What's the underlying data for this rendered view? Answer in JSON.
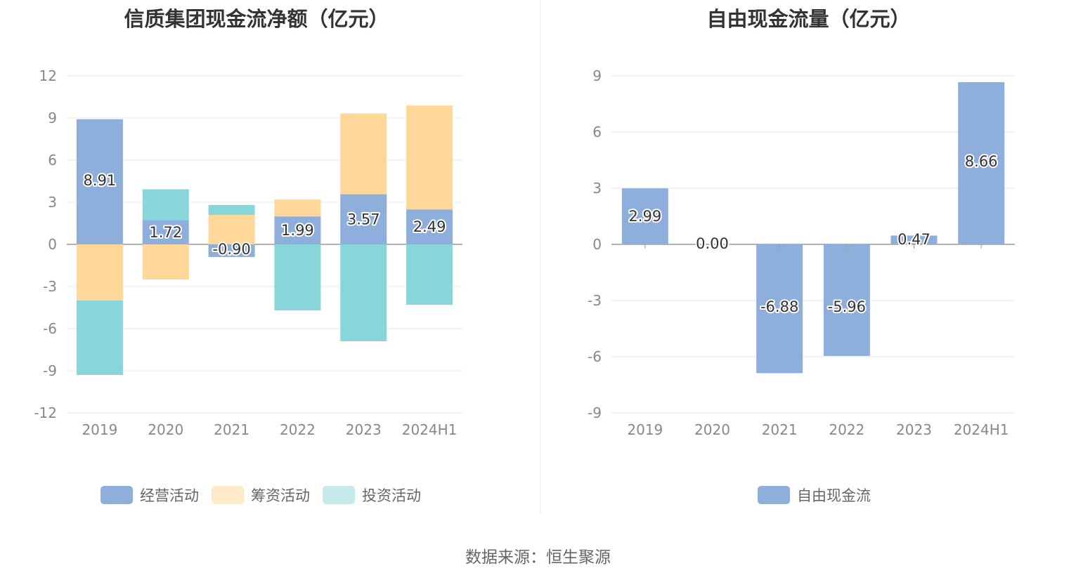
{
  "source_text": "数据来源：恒生聚源",
  "chart_data": [
    {
      "type": "bar",
      "stacked": true,
      "title": "信质集团现金流净额（亿元）",
      "categories": [
        "2019",
        "2020",
        "2021",
        "2022",
        "2023",
        "2024H1"
      ],
      "ylim": [
        -12,
        12
      ],
      "yticks": [
        12,
        9,
        6,
        3,
        0,
        -3,
        -6,
        -9,
        -12
      ],
      "grid": true,
      "legend_position": "bottom",
      "series": [
        {
          "name": "经营活动",
          "color": "#8eaedc",
          "values": [
            8.91,
            1.72,
            -0.9,
            1.99,
            3.57,
            2.49
          ],
          "labels": [
            "8.91",
            "1.72",
            "-0.90",
            "1.99",
            "3.57",
            "2.49"
          ]
        },
        {
          "name": "筹资活动",
          "color": "#ffd899",
          "values": [
            -4.0,
            -2.5,
            2.1,
            1.2,
            5.75,
            7.4
          ]
        },
        {
          "name": "投资活动",
          "color": "#88d6da",
          "values": [
            -5.3,
            2.2,
            0.7,
            -4.7,
            -6.9,
            -4.3
          ]
        }
      ]
    },
    {
      "type": "bar",
      "title": "自由现金流量（亿元）",
      "categories": [
        "2019",
        "2020",
        "2021",
        "2022",
        "2023",
        "2024H1"
      ],
      "ylim": [
        -9,
        9
      ],
      "yticks": [
        9,
        6,
        3,
        0,
        -3,
        -6,
        -9
      ],
      "grid": true,
      "legend_position": "bottom",
      "series": [
        {
          "name": "自由现金流",
          "color": "#8eaedc",
          "values": [
            2.99,
            0.0,
            -6.88,
            -5.96,
            0.47,
            8.66
          ],
          "labels": [
            "2.99",
            "0.00",
            "-6.88",
            "-5.96",
            "0.47",
            "8.66"
          ]
        }
      ]
    }
  ]
}
